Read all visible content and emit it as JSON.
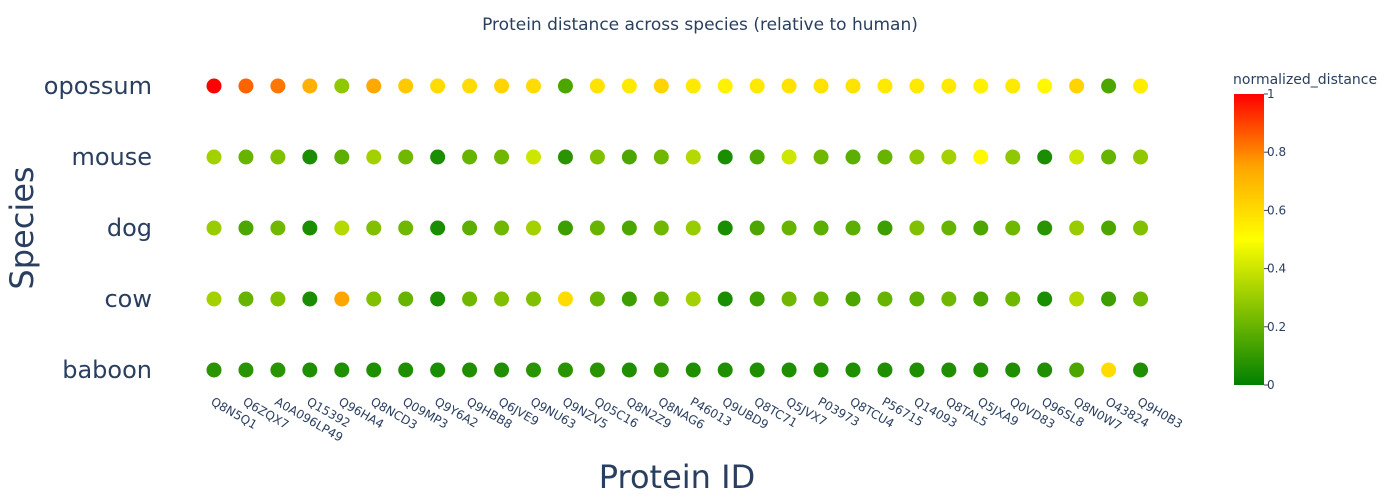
{
  "chart_data": {
    "type": "scatter",
    "title": "Protein distance across species (relative to human)",
    "xlabel": "Protein ID",
    "ylabel": "Species",
    "x_categories": [
      "Q8N5Q1",
      "Q6ZQX7",
      "A0A096LP49",
      "Q15392",
      "Q96HA4",
      "Q8NCD3",
      "Q09MP3",
      "Q9Y6A2",
      "Q9HBB8",
      "Q6JVE9",
      "Q9NU63",
      "Q9NZV5",
      "Q05C16",
      "Q8N2Z9",
      "Q8NAG6",
      "P46013",
      "Q9UBD9",
      "Q8TC71",
      "Q5JVX7",
      "P03973",
      "Q8TCU4",
      "P56715",
      "Q14093",
      "Q8TAL5",
      "Q5JXA9",
      "Q0VD83",
      "Q96SL8",
      "Q8N0W7",
      "O43824",
      "Q9H0B3"
    ],
    "y_categories": [
      "baboon",
      "cow",
      "dog",
      "mouse",
      "opossum"
    ],
    "series": [
      {
        "species": "opossum",
        "values": [
          1.0,
          0.85,
          0.82,
          0.72,
          0.28,
          0.74,
          0.65,
          0.6,
          0.6,
          0.62,
          0.6,
          0.15,
          0.58,
          0.56,
          0.62,
          0.56,
          0.54,
          0.56,
          0.58,
          0.58,
          0.58,
          0.56,
          0.56,
          0.56,
          0.54,
          0.56,
          0.52,
          0.62,
          0.15,
          0.55
        ]
      },
      {
        "species": "mouse",
        "values": [
          0.32,
          0.2,
          0.25,
          0.05,
          0.18,
          0.32,
          0.22,
          0.05,
          0.2,
          0.22,
          0.4,
          0.08,
          0.25,
          0.15,
          0.22,
          0.35,
          0.05,
          0.15,
          0.4,
          0.22,
          0.18,
          0.2,
          0.28,
          0.32,
          0.52,
          0.28,
          0.05,
          0.4,
          0.2,
          0.28
        ]
      },
      {
        "species": "dog",
        "values": [
          0.3,
          0.15,
          0.22,
          0.05,
          0.35,
          0.25,
          0.22,
          0.05,
          0.18,
          0.22,
          0.32,
          0.12,
          0.2,
          0.15,
          0.22,
          0.3,
          0.05,
          0.15,
          0.2,
          0.18,
          0.18,
          0.12,
          0.25,
          0.2,
          0.15,
          0.22,
          0.08,
          0.3,
          0.15,
          0.25
        ]
      },
      {
        "species": "cow",
        "values": [
          0.32,
          0.2,
          0.25,
          0.05,
          0.75,
          0.25,
          0.2,
          0.05,
          0.22,
          0.25,
          0.25,
          0.6,
          0.2,
          0.12,
          0.18,
          0.32,
          0.05,
          0.12,
          0.22,
          0.2,
          0.15,
          0.2,
          0.18,
          0.22,
          0.15,
          0.22,
          0.05,
          0.35,
          0.12,
          0.22
        ]
      },
      {
        "species": "baboon",
        "values": [
          0.08,
          0.08,
          0.08,
          0.06,
          0.06,
          0.06,
          0.06,
          0.05,
          0.06,
          0.06,
          0.08,
          0.08,
          0.08,
          0.06,
          0.08,
          0.06,
          0.06,
          0.06,
          0.06,
          0.06,
          0.06,
          0.06,
          0.06,
          0.06,
          0.06,
          0.06,
          0.06,
          0.15,
          0.6,
          0.06
        ]
      }
    ],
    "colorbar": {
      "title": "normalized_distance",
      "range": [
        0,
        1
      ],
      "ticks": [
        "0",
        "0.2",
        "0.4",
        "0.6",
        "0.8",
        "1"
      ],
      "colorscale": [
        [
          0,
          "#008000"
        ],
        [
          0.5,
          "#ffff00"
        ],
        [
          0.75,
          "#ffa500"
        ],
        [
          1,
          "#ff0000"
        ]
      ]
    },
    "grid": false,
    "legend": "colorbar-right"
  }
}
